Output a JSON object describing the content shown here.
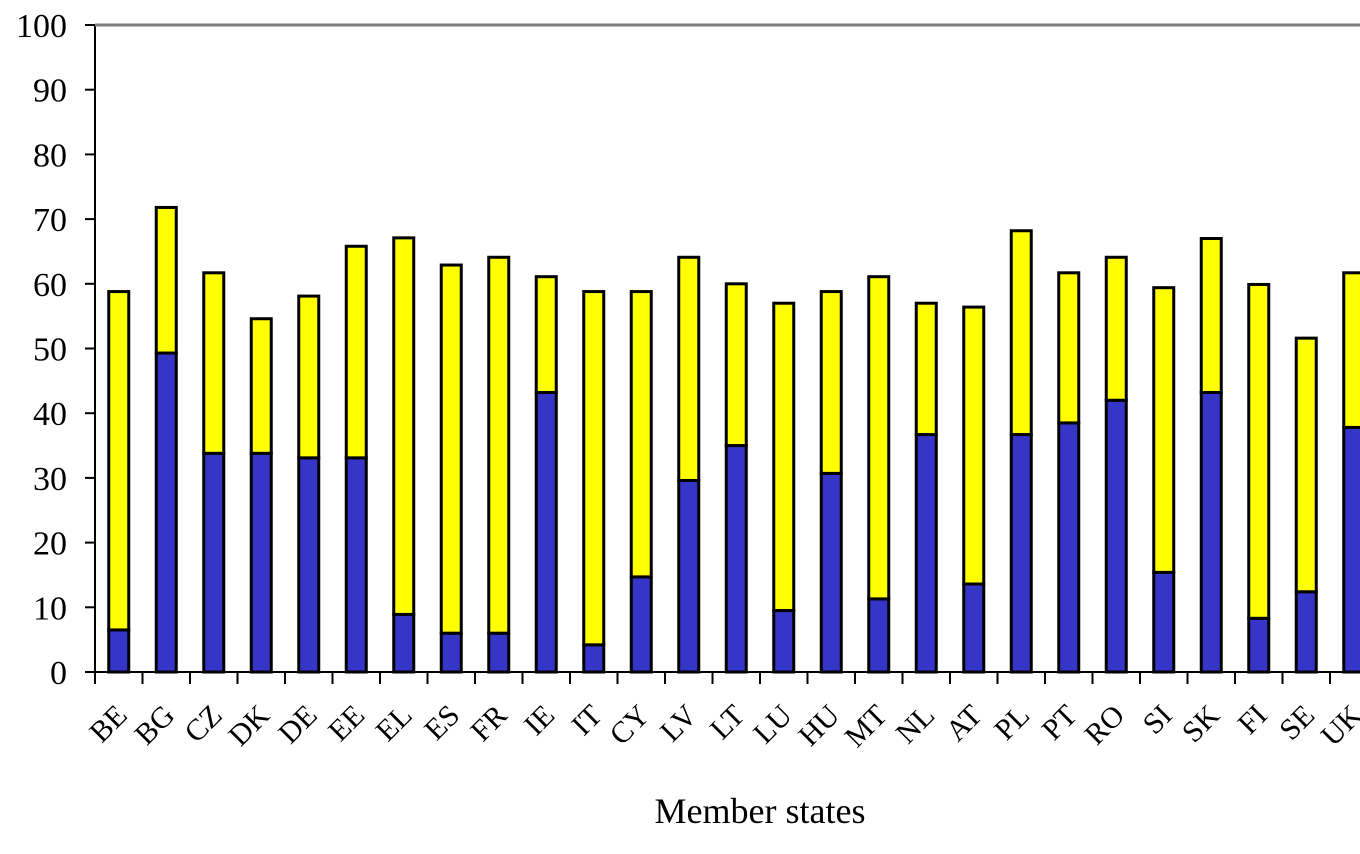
{
  "chart_data": {
    "type": "bar",
    "stacked": true,
    "title": "",
    "xlabel": "Member states",
    "ylabel": "",
    "ylim": [
      0,
      100
    ],
    "yticks": [
      0,
      10,
      20,
      30,
      40,
      50,
      60,
      70,
      80,
      90,
      100
    ],
    "grid": false,
    "categories": [
      "BE",
      "BG",
      "CZ",
      "DK",
      "DE",
      "EE",
      "EL",
      "ES",
      "FR",
      "IE",
      "IT",
      "CY",
      "LV",
      "LT",
      "LU",
      "HU",
      "MT",
      "NL",
      "AT",
      "PL",
      "PT",
      "RO",
      "SI",
      "SK",
      "FI",
      "SE",
      "UK"
    ],
    "series": [
      {
        "color": "#3535c8",
        "values": [
          6.5,
          49.3,
          33.8,
          33.8,
          33.1,
          33.1,
          8.9,
          6.0,
          6.0,
          43.2,
          4.2,
          14.7,
          29.6,
          35.0,
          9.5,
          30.7,
          11.3,
          36.7,
          13.6,
          36.7,
          38.5,
          42.0,
          15.4,
          43.2,
          8.3,
          12.4,
          37.8
        ]
      },
      {
        "color": "#ffff00",
        "values": [
          52.3,
          22.5,
          27.9,
          20.8,
          25.0,
          32.7,
          58.2,
          56.9,
          58.1,
          17.9,
          54.6,
          44.1,
          34.5,
          25.0,
          47.5,
          28.1,
          49.8,
          20.3,
          42.8,
          31.5,
          23.2,
          22.1,
          44.0,
          23.8,
          51.6,
          39.2,
          23.9
        ]
      }
    ]
  }
}
